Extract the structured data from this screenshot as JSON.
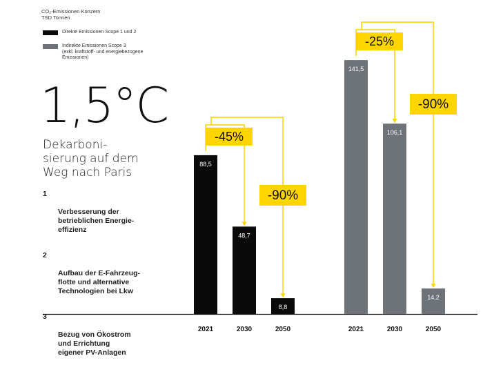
{
  "header": {
    "title_line1": "CO₂-Emissionen Konzern",
    "title_line2": "TSD Tonnen"
  },
  "legend": [
    {
      "label": "Direkte Emissionen Scope 1 und 2",
      "color": "#0a0a0a"
    },
    {
      "label": "Indirekte Emissionen Scope 3\n(exkl. kraftstoff- und energiebezogene\nEmissionen)",
      "color": "#6d7378"
    }
  ],
  "headline": {
    "temperature": "1,5°C",
    "subtitle": "Dekarboni-\nsierung auf dem\nWeg nach Paris"
  },
  "measures": [
    {
      "number": "1",
      "text": "Verbesserung der\nbetrieblichen Energie-\neffizienz"
    },
    {
      "number": "2",
      "text": "Aufbau der E-Fahrzeug-\nflotte und alternative\nTechnologien bei Lkw"
    },
    {
      "number": "3",
      "text": "Bezug von Ökostrom\nund Errichtung\neigener PV-Anlagen"
    }
  ],
  "colors": {
    "accent_yellow": "#ffd500",
    "scope12_black": "#0a0a0a",
    "scope3_gray": "#6d7378",
    "axis": "#111111"
  },
  "chart_data": [
    {
      "type": "bar",
      "series_name": "Direkte Emissionen Scope 1 und 2",
      "categories": [
        "2021",
        "2030",
        "2050"
      ],
      "values": [
        88.5,
        48.7,
        8.8
      ],
      "value_labels": [
        "88,5",
        "48,7",
        "8,8"
      ],
      "reduction_labels": [
        "-45%",
        "-90%"
      ],
      "ylim": [
        0,
        150
      ]
    },
    {
      "type": "bar",
      "series_name": "Indirekte Emissionen Scope 3 (exkl. kraftstoff- und energiebezogene Emissionen)",
      "categories": [
        "2021",
        "2030",
        "2050"
      ],
      "values": [
        141.5,
        106.1,
        14.2
      ],
      "value_labels": [
        "141,5",
        "106,1",
        "14,2"
      ],
      "reduction_labels": [
        "-25%",
        "-90%"
      ],
      "ylim": [
        0,
        150
      ]
    }
  ]
}
